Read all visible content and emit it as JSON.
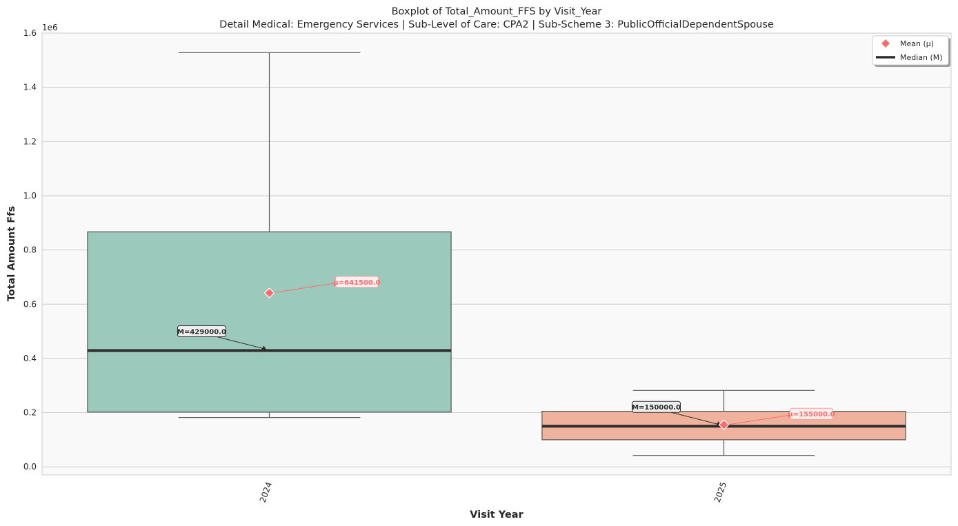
{
  "chart_data": {
    "type": "box",
    "title": "Boxplot of Total_Amount_FFS by Visit_Year",
    "subtitle": "Detail Medical: Emergency Services | Sub-Level of Care: CPA2 | Sub-Scheme 3: PublicOfficialDependentSpouse",
    "xlabel": "Visit Year",
    "ylabel": "Total Amount Ffs",
    "y_offset_label": "1e6",
    "ylim": [
      -30000,
      1600000
    ],
    "y_ticks": [
      0,
      200000,
      400000,
      600000,
      800000,
      1000000,
      1200000,
      1400000,
      1600000
    ],
    "y_tick_labels": [
      "0.0",
      "0.2",
      "0.4",
      "0.6",
      "0.8",
      "1.0",
      "1.2",
      "1.4",
      "1.6"
    ],
    "grid": true,
    "legend_position": "top-right",
    "legend": [
      {
        "label": "Mean (μ)",
        "marker": "diamond",
        "color": "#ff6b6b"
      },
      {
        "label": "Median (M)",
        "marker": "line",
        "color": "#2d2d2d"
      }
    ],
    "categories": [
      "2024",
      "2025"
    ],
    "boxes": [
      {
        "category": "2024",
        "whisker_low": 182000,
        "q1": 202000,
        "median": 429000,
        "q3": 867000,
        "whisker_high": 1528000,
        "mean": 641500,
        "color": "#9bc9bb",
        "median_label": "M=429000.0",
        "mean_label": "μ=641500.0"
      },
      {
        "category": "2025",
        "whisker_low": 42000,
        "q1": 100000,
        "median": 150000,
        "q3": 205000,
        "whisker_high": 282000,
        "mean": 155000,
        "color": "#efb39d",
        "median_label": "M=150000.0",
        "mean_label": "μ=155000.0"
      }
    ]
  }
}
